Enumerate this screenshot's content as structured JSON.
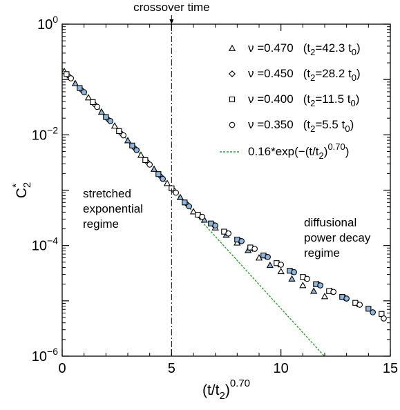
{
  "chart_data": {
    "type": "scatter",
    "xlabel_base": "(t/t",
    "xlabel_sub": "2",
    "xlabel_close": ")",
    "xlabel_sup": "0.70",
    "ylabel_base": "C",
    "ylabel_sub": "2",
    "ylabel_sup": "*",
    "xlim": [
      0,
      15
    ],
    "ylim": [
      1e-06,
      1
    ],
    "y_scale": "log",
    "x_ticks": [
      {
        "value": 0,
        "label": "0"
      },
      {
        "value": 5,
        "label": "5"
      },
      {
        "value": 10,
        "label": "10"
      },
      {
        "value": 15,
        "label": "15"
      }
    ],
    "y_ticks": [
      {
        "value": 1,
        "base": "10",
        "exp": "0"
      },
      {
        "value": 0.01,
        "base": "10",
        "exp": "−2"
      },
      {
        "value": 0.0001,
        "base": "10",
        "exp": "−4"
      },
      {
        "value": 1e-06,
        "base": "10",
        "exp": "−6"
      }
    ],
    "crossover": {
      "x": 5,
      "label": "crossover time"
    },
    "annotations": {
      "stretched": [
        "stretched",
        "exponential",
        "regime"
      ],
      "diffusional": [
        "diffusional",
        "power decay",
        "regime"
      ]
    },
    "fit": {
      "label_prefix": "0.16*exp(−(t/t",
      "label_sub": "2",
      "label_mid": ")",
      "label_sup": "0.70",
      "label_suffix": ")",
      "amplitude": 0.16,
      "color": "#2a9d2a",
      "x": [
        0,
        12
      ],
      "description": "C = 0.16*exp(-x)"
    },
    "series": [
      {
        "marker": "triangle",
        "nu": "ν =0.470",
        "t2_open": "(t",
        "t2_sub": "2",
        "t2_value": "=42.3 t",
        "t0_sub": "0",
        "t0_close": ")",
        "x": [
          0.1,
          0.6,
          1.2,
          1.8,
          2.4,
          3.0,
          3.6,
          4.2,
          4.8,
          5.4,
          6.0,
          6.5,
          7.0,
          7.5,
          8.0,
          8.5,
          9.0,
          9.5,
          10.0,
          10.5,
          11.0,
          11.5,
          12.0
        ],
        "y": [
          0.14,
          0.085,
          0.047,
          0.026,
          0.0145,
          0.0079,
          0.0043,
          0.0024,
          0.00133,
          0.00074,
          0.00041,
          0.00029,
          0.00021,
          0.000155,
          0.000112,
          8.2e-05,
          6e-05,
          4.4e-05,
          3.4e-05,
          2.5e-05,
          1.9e-05,
          1.5e-05,
          1.2e-05
        ]
      },
      {
        "marker": "diamond",
        "nu": "ν =0.450",
        "t2_open": "(t",
        "t2_sub": "2",
        "t2_value": "=28.2 t",
        "t0_sub": "0",
        "t0_close": ")",
        "x": [
          0.3,
          0.9,
          1.5,
          2.1,
          2.7,
          3.3,
          3.9,
          4.5,
          5.1,
          5.7,
          6.3,
          6.9,
          7.5,
          8.1,
          8.7,
          9.3,
          9.9,
          10.5,
          11.1,
          11.7,
          12.3,
          12.9,
          13.5
        ],
        "y": [
          0.115,
          0.064,
          0.035,
          0.019,
          0.0106,
          0.0058,
          0.0032,
          0.00178,
          0.00099,
          0.00056,
          0.00034,
          0.00024,
          0.000172,
          0.000124,
          8.9e-05,
          6.4e-05,
          4.6e-05,
          3.4e-05,
          2.6e-05,
          2e-05,
          1.5e-05,
          1.15e-05,
          8.8e-06
        ]
      },
      {
        "marker": "square",
        "nu": "ν =0.400",
        "t2_open": "(t",
        "t2_sub": "2",
        "t2_value": "=11.5 t",
        "t0_sub": "0",
        "t0_close": ")",
        "x": [
          0.2,
          0.8,
          1.4,
          2.0,
          2.6,
          3.2,
          3.8,
          4.4,
          5.0,
          5.6,
          6.2,
          6.8,
          7.4,
          8.0,
          8.6,
          9.2,
          9.8,
          10.4,
          11.0,
          11.6,
          12.2,
          12.8,
          13.4,
          14.0,
          14.6
        ],
        "y": [
          0.125,
          0.07,
          0.039,
          0.021,
          0.0117,
          0.0064,
          0.0035,
          0.00195,
          0.00108,
          0.0006,
          0.00036,
          0.00025,
          0.000178,
          0.000128,
          9.2e-05,
          6.6e-05,
          4.8e-05,
          3.5e-05,
          2.7e-05,
          2e-05,
          1.5e-05,
          1.18e-05,
          9.2e-06,
          7.2e-06,
          5.8e-06
        ]
      },
      {
        "marker": "circle",
        "nu": "ν =0.350",
        "t2_open": "(t",
        "t2_sub": "2",
        "t2_value": "=5.5 t",
        "t0_sub": "0",
        "t0_close": ")",
        "x": [
          0.4,
          1.0,
          1.6,
          2.2,
          2.8,
          3.4,
          4.0,
          4.6,
          5.2,
          5.8,
          6.4,
          7.0,
          7.6,
          8.2,
          8.8,
          9.4,
          10.0,
          10.6,
          11.2,
          11.8,
          12.4,
          13.0,
          13.6,
          14.2,
          14.7
        ],
        "y": [
          0.105,
          0.059,
          0.032,
          0.0178,
          0.0098,
          0.0053,
          0.0029,
          0.0016,
          0.0009,
          0.00051,
          0.00033,
          0.00023,
          0.000165,
          0.00012,
          8.7e-05,
          6.2e-05,
          4.5e-05,
          3.3e-05,
          2.5e-05,
          1.9e-05,
          1.45e-05,
          1.1e-05,
          8.5e-06,
          6.2e-06,
          4.8e-06
        ]
      }
    ]
  }
}
